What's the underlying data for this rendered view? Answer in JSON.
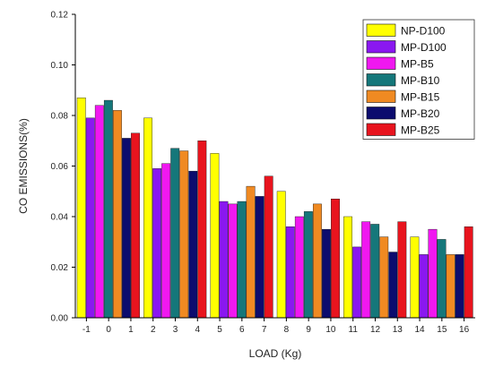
{
  "chart_data": {
    "type": "bar",
    "title": "",
    "xlabel": "LOAD (Kg)",
    "ylabel": "CO EMISSIONS(%)",
    "ylim": [
      0,
      0.12
    ],
    "yticks": [
      "0.00",
      "0.02",
      "0.04",
      "0.06",
      "0.08",
      "0.10",
      "0.12"
    ],
    "xticks": [
      "-1",
      "0",
      "1",
      "2",
      "3",
      "4",
      "5",
      "6",
      "7",
      "8",
      "9",
      "10",
      "11",
      "12",
      "13",
      "14",
      "15",
      "16"
    ],
    "categories": [
      "0",
      "3",
      "6",
      "9",
      "12",
      "15"
    ],
    "legend_position": "top-right",
    "grid": false,
    "series": [
      {
        "name": "NP-D100",
        "color": "#ffff00",
        "values": [
          0.087,
          0.079,
          0.065,
          0.05,
          0.04,
          0.032
        ]
      },
      {
        "name": "MP-D100",
        "color": "#8a18f0",
        "values": [
          0.079,
          0.059,
          0.046,
          0.036,
          0.028,
          0.025
        ]
      },
      {
        "name": "MP-B5",
        "color": "#f018f0",
        "values": [
          0.084,
          0.061,
          0.045,
          0.04,
          0.038,
          0.035
        ]
      },
      {
        "name": "MP-B10",
        "color": "#15777a",
        "values": [
          0.086,
          0.067,
          0.046,
          0.042,
          0.037,
          0.031
        ]
      },
      {
        "name": "MP-B15",
        "color": "#f08a22",
        "values": [
          0.082,
          0.066,
          0.052,
          0.045,
          0.032,
          0.025
        ]
      },
      {
        "name": "MP-B20",
        "color": "#0c0c6e",
        "values": [
          0.071,
          0.058,
          0.048,
          0.035,
          0.026,
          0.025
        ]
      },
      {
        "name": "MP-B25",
        "color": "#e8141e",
        "values": [
          0.073,
          0.07,
          0.056,
          0.047,
          0.038,
          0.036
        ]
      }
    ]
  }
}
